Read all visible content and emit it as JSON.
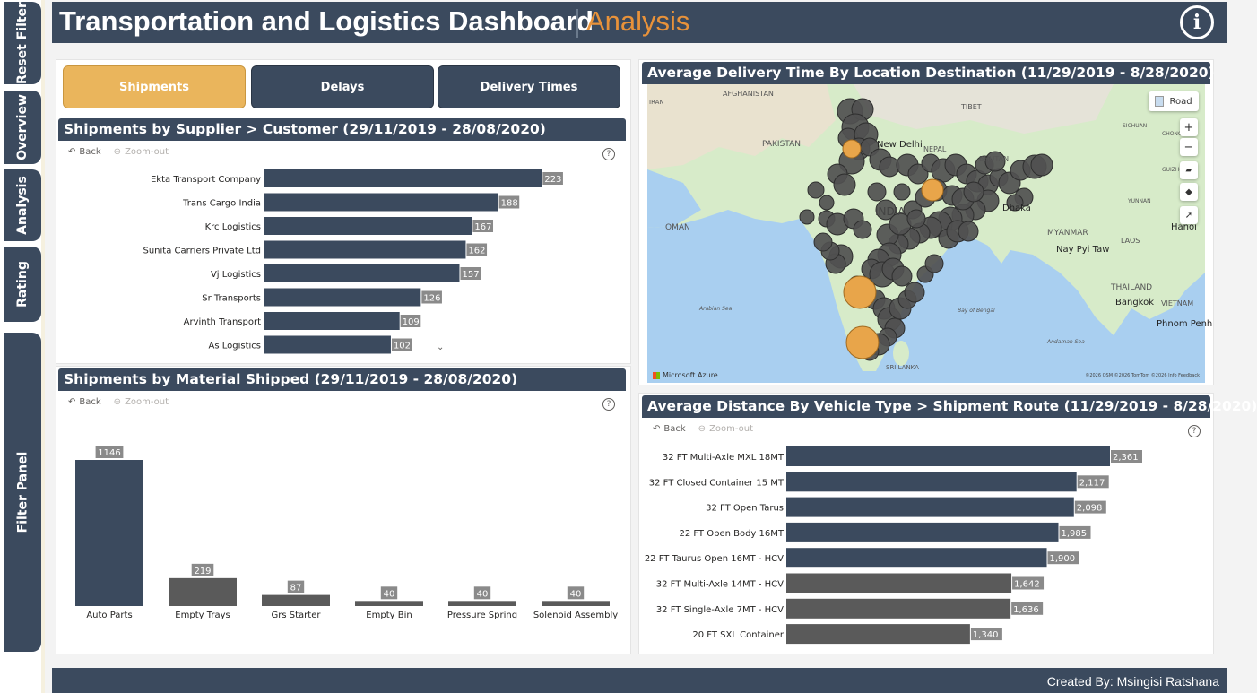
{
  "sidebar": {
    "tabs": [
      {
        "label": "Reset Filter"
      },
      {
        "label": "Overview"
      },
      {
        "label": "Analysis"
      },
      {
        "label": "Rating"
      },
      {
        "label": "Filter Panel"
      }
    ]
  },
  "header": {
    "title": "Transportation and Logistics Dashboard",
    "subtitle": "Analysis"
  },
  "footer": {
    "credit": "Created By: Msingisi Ratshana"
  },
  "page_tabs": [
    {
      "label": "Shipments",
      "active": true
    },
    {
      "label": "Delays",
      "active": false
    },
    {
      "label": "Delivery Times",
      "active": false
    }
  ],
  "visual_controls": {
    "back": "Back",
    "zoom_out": "Zoom-out",
    "help": "?"
  },
  "map_panel": {
    "title": "Average Delivery Time By Location Destination (11/29/2019 - 8/28/2020)",
    "road_label": "Road",
    "attribution": "Microsoft Azure",
    "copyright": "©2026 OSM  ©2026 TomTom  ©2026 Info  Feedback",
    "zoom_in": "+",
    "zoom_out": "−",
    "places": {
      "afghanistan": "AFGHANISTAN",
      "tibet": "TIBET",
      "pakistan": "PAKISTAN",
      "new_delhi": "New Delhi",
      "nepal": "NEPAL",
      "bhutan": "BHUTAN",
      "india": "INDIA",
      "dhaka": "Dhaka",
      "myanmar": "MYANMAR",
      "nay_pyi_taw": "Nay Pyi Taw",
      "laos": "LAOS",
      "hanoi": "Hanoi",
      "oman": "OMAN",
      "arabian_sea": "Arabian Sea",
      "bay_of_bengal": "Bay of Bengal",
      "thailand": "THAILAND",
      "bangkok": "Bangkok",
      "vietnam": "VIETNAM",
      "phnom_penh": "Phnom Penh",
      "andaman_sea": "Andaman Sea",
      "sri_lanka": "SRI LANKA",
      "iran": "IRAN",
      "sichuan": "SICHUAN",
      "chongqing": "CHONGQING",
      "guizhou": "GUIZHOU",
      "yunnan": "YUNNAN"
    }
  },
  "chart_data": [
    {
      "id": "supplier",
      "type": "bar",
      "orientation": "horizontal",
      "title": "Shipments by Supplier > Customer (29/11/2019 - 28/08/2020)",
      "categories": [
        "Ekta Transport Company",
        "Trans Cargo India",
        "Krc Logistics",
        "Sunita Carriers Private Ltd",
        "Vj Logistics",
        "Sr Transports",
        "Arvinth Transport",
        "As Logistics"
      ],
      "values": [
        223,
        188,
        167,
        162,
        157,
        126,
        109,
        102
      ],
      "colors": [
        "#3b4a5e"
      ],
      "xlim": [
        0,
        240
      ]
    },
    {
      "id": "material",
      "type": "bar",
      "orientation": "vertical",
      "title": "Shipments by Material Shipped (29/11/2019 - 28/08/2020)",
      "categories": [
        "Auto Parts",
        "Empty Trays",
        "Grs Starter",
        "Empty Bin",
        "Pressure Spring",
        "Solenoid Assembly"
      ],
      "values": [
        1146,
        219,
        87,
        40,
        40,
        40
      ],
      "colors": [
        "#3b4a5e",
        "#5a5a5a",
        "#5a5a5a",
        "#5a5a5a",
        "#5a5a5a",
        "#5a5a5a"
      ],
      "ylim": [
        0,
        1146
      ]
    },
    {
      "id": "vehicle",
      "type": "bar",
      "orientation": "horizontal",
      "title": "Average Distance By Vehicle Type > Shipment Route (11/29/2019 - 8/28/2020)",
      "categories": [
        "32 FT Multi-Axle MXL 18MT",
        "32 FT Closed Container 15 MT",
        "32 FT Open Tarus",
        "22 FT Open Body 16MT",
        "22 FT Taurus Open 16MT - HCV",
        "32 FT Multi-Axle 14MT - HCV",
        "32 FT Single-Axle 7MT - HCV",
        "20 FT SXL Container"
      ],
      "values": [
        2361,
        2117,
        2098,
        1985,
        1900,
        1642,
        1636,
        1340
      ],
      "labels": [
        "2,361",
        "2,117",
        "2,098",
        "1,985",
        "1,900",
        "1,642",
        "1,636",
        "1,340"
      ],
      "colors": [
        "#3b4a5e",
        "#3b4a5e",
        "#3b4a5e",
        "#3b4a5e",
        "#3b4a5e",
        "#5a5a5a",
        "#5a5a5a",
        "#5a5a5a"
      ],
      "xlim": [
        0,
        2361
      ]
    }
  ],
  "theme": {
    "navy": "#3b4a5e",
    "gray_bar": "#5a5a5a",
    "accent": "#e8923a",
    "active_tab": "#eab55c"
  }
}
